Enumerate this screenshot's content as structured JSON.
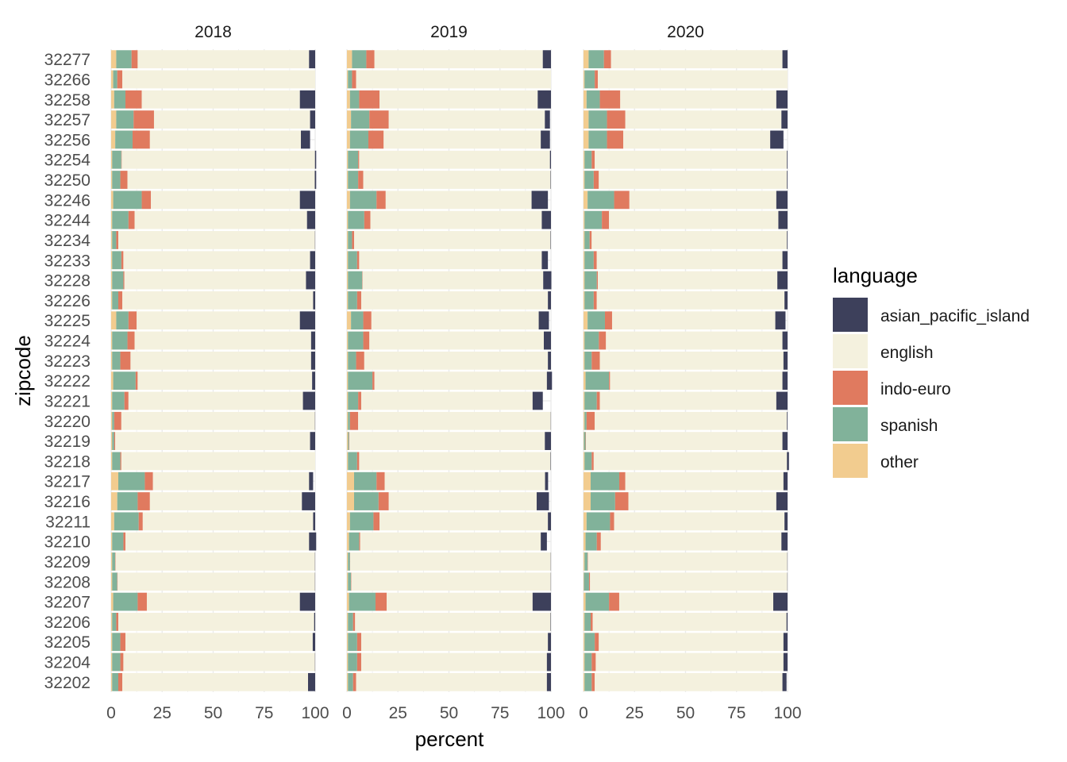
{
  "chart_data": {
    "type": "bar",
    "orientation": "horizontal",
    "stacked": true,
    "xlabel": "percent",
    "ylabel": "zipcode",
    "xlim": [
      0,
      100
    ],
    "xticks": [
      "0",
      "25",
      "50",
      "75",
      "100"
    ],
    "grid": true,
    "legend": {
      "title": "language",
      "position": "right",
      "items": [
        {
          "key": "asian_pacific_island",
          "label": "asian_pacific_island",
          "color": "#3d405b"
        },
        {
          "key": "english",
          "label": "english",
          "color": "#f4f1de"
        },
        {
          "key": "indo-euro",
          "label": "indo-euro",
          "color": "#e07a5f"
        },
        {
          "key": "spanish",
          "label": "spanish",
          "color": "#81b29a"
        },
        {
          "key": "other",
          "label": "other",
          "color": "#f2cc8f"
        }
      ]
    },
    "stack_order": [
      "other",
      "spanish",
      "indo-euro",
      "english",
      "asian_pacific_island"
    ],
    "categories": [
      "32277",
      "32266",
      "32258",
      "32257",
      "32256",
      "32254",
      "32250",
      "32246",
      "32244",
      "32234",
      "32233",
      "32228",
      "32226",
      "32225",
      "32224",
      "32223",
      "32222",
      "32221",
      "32220",
      "32219",
      "32218",
      "32217",
      "32216",
      "32211",
      "32210",
      "32209",
      "32208",
      "32207",
      "32206",
      "32205",
      "32204",
      "32202"
    ],
    "panels": [
      {
        "title": "2018",
        "values": {
          "other": [
            2.5,
            1,
            1.5,
            2.5,
            2,
            0.5,
            0.5,
            1,
            0.5,
            0.5,
            0.5,
            0.5,
            0.5,
            2.5,
            0.5,
            0.5,
            1,
            0.5,
            0.5,
            0.5,
            0.5,
            3.5,
            3,
            1.5,
            0.5,
            0.5,
            0.5,
            1,
            0.5,
            0.5,
            0.5,
            0.5
          ],
          "spanish": [
            7.5,
            2,
            5.5,
            8.5,
            8.5,
            4.5,
            4,
            14,
            8,
            2,
            4.5,
            5.5,
            3,
            6,
            7.5,
            4,
            11,
            6,
            1,
            1,
            4,
            13,
            10,
            12,
            5.5,
            1.5,
            2.5,
            12,
            2,
            4,
            4,
            3
          ],
          "indo-euro": [
            3,
            2.5,
            8,
            10,
            8.5,
            0.2,
            3.5,
            4.5,
            3,
            1,
            1,
            0.5,
            2,
            4,
            3.5,
            5,
            1,
            2,
            3.5,
            0.5,
            0.5,
            4,
            6,
            2,
            1,
            0.2,
            0.2,
            4.5,
            1,
            2.5,
            1.5,
            2
          ],
          "english": [
            84,
            94.5,
            77.5,
            76.5,
            74,
            94.7,
            91.8,
            73,
            84.5,
            96.4,
            91.5,
            89,
            93.5,
            80,
            86.5,
            88.5,
            85.5,
            85.5,
            94.9,
            95.5,
            95,
            76.5,
            74.5,
            83.5,
            90,
            97.7,
            96.7,
            75,
            96,
            91.8,
            93.9,
            91
          ],
          "asian_pacific_island": [
            3,
            0,
            7.5,
            2.5,
            4.5,
            0.6,
            0.7,
            7.5,
            4,
            0.1,
            2.5,
            4.5,
            1,
            7.5,
            2,
            2,
            1.5,
            6,
            0.1,
            2.5,
            0,
            2,
            6.5,
            1,
            3.5,
            0.1,
            0.1,
            7.5,
            0.5,
            1.2,
            0.1,
            3.5
          ]
        }
      },
      {
        "title": "2019",
        "values": {
          "other": [
            2.5,
            0.5,
            1.5,
            2,
            1.5,
            0.5,
            0.5,
            1.5,
            0.5,
            0.5,
            0.5,
            0.5,
            0.5,
            2,
            0.5,
            0.5,
            0.5,
            0.5,
            0.5,
            0.5,
            0.5,
            3.5,
            3.5,
            1.5,
            1,
            0.5,
            0.5,
            1,
            0.5,
            0.5,
            0.5,
            0.5
          ],
          "spanish": [
            7,
            2,
            4.5,
            9,
            9,
            5,
            5,
            13,
            8,
            2,
            4.5,
            7,
            4.5,
            6,
            7.5,
            4,
            12,
            5,
            1,
            0.5,
            4.5,
            11,
            12,
            11.5,
            5,
            1,
            1.5,
            13,
            2.5,
            4.5,
            4.5,
            2.5
          ],
          "indo-euro": [
            4,
            2,
            10,
            9.5,
            7.5,
            0.5,
            2.5,
            4.5,
            3,
            1,
            1,
            0.2,
            2,
            4,
            3,
            4,
            1,
            1.5,
            4,
            0.2,
            1,
            4,
            5,
            3,
            0.5,
            0.1,
            0.2,
            5.5,
            1,
            2,
            2,
            1.5
          ],
          "english": [
            82.5,
            95.5,
            77.5,
            76.5,
            77,
            93.5,
            91.8,
            71.5,
            84,
            96.3,
            89.5,
            88.5,
            91.5,
            82,
            85.5,
            90,
            84.5,
            84,
            94.4,
            95.8,
            93.8,
            78.6,
            72.5,
            82.5,
            88.5,
            98.3,
            97.7,
            71.5,
            95.8,
            91.5,
            91,
            93.5
          ],
          "asian_pacific_island": [
            4,
            0,
            6.5,
            2.5,
            4.5,
            0.5,
            0.2,
            8,
            4.5,
            0.2,
            3,
            4,
            1.5,
            5,
            3.5,
            1.5,
            2.5,
            5,
            0.1,
            3,
            0.2,
            1.5,
            6,
            1.5,
            3,
            0.1,
            0.1,
            9,
            0.2,
            1.5,
            2,
            2
          ]
        }
      },
      {
        "title": "2020",
        "values": {
          "other": [
            2.5,
            0.5,
            1.5,
            2.5,
            2.5,
            0.5,
            0.5,
            2,
            0.5,
            0.5,
            0.5,
            0.5,
            0.5,
            2,
            0.5,
            0.5,
            1,
            0.5,
            0.5,
            0.2,
            0.5,
            3.5,
            3.5,
            1.5,
            1,
            0.5,
            0.2,
            1,
            0.5,
            0.5,
            0.5,
            0.5
          ],
          "spanish": [
            7.5,
            5,
            6.5,
            9,
            9,
            3.5,
            4.5,
            13,
            8.5,
            2.5,
            4.5,
            6,
            4.5,
            8.5,
            7,
            3.5,
            11.5,
            6,
            1,
            0.8,
            3.5,
            14,
            12,
            11.5,
            5.5,
            1.5,
            2.5,
            11.5,
            3,
            5,
            3.5,
            3.5
          ],
          "indo-euro": [
            3.5,
            1.5,
            10,
            9,
            8,
            1.5,
            2.5,
            7.5,
            3.5,
            1,
            1.5,
            0.5,
            1.5,
            3.5,
            3.5,
            4,
            0.5,
            1.5,
            4,
            0.2,
            1,
            3,
            6.5,
            2,
            2,
            0.2,
            0.5,
            5,
            1,
            2,
            2,
            1.5
          ],
          "english": [
            84,
            93,
            76.5,
            76.5,
            72,
            94.2,
            92.2,
            72,
            83,
            95.7,
            91,
            88,
            92,
            80,
            86.5,
            90,
            84.5,
            86.5,
            94.2,
            96.3,
            94.7,
            77.5,
            72.5,
            83.5,
            88.5,
            97.7,
            96.7,
            75.5,
            95,
            90.5,
            92,
            92
          ],
          "asian_pacific_island": [
            2.5,
            0,
            5.5,
            3,
            6.5,
            0.3,
            0.3,
            5.5,
            4.5,
            0.3,
            2.5,
            5,
            1.5,
            5,
            2.5,
            2,
            2.5,
            5.5,
            0.3,
            2.5,
            1,
            2,
            5.5,
            1.5,
            3,
            0.1,
            0.1,
            7,
            0.5,
            2,
            2,
            2
          ]
        }
      }
    ]
  }
}
